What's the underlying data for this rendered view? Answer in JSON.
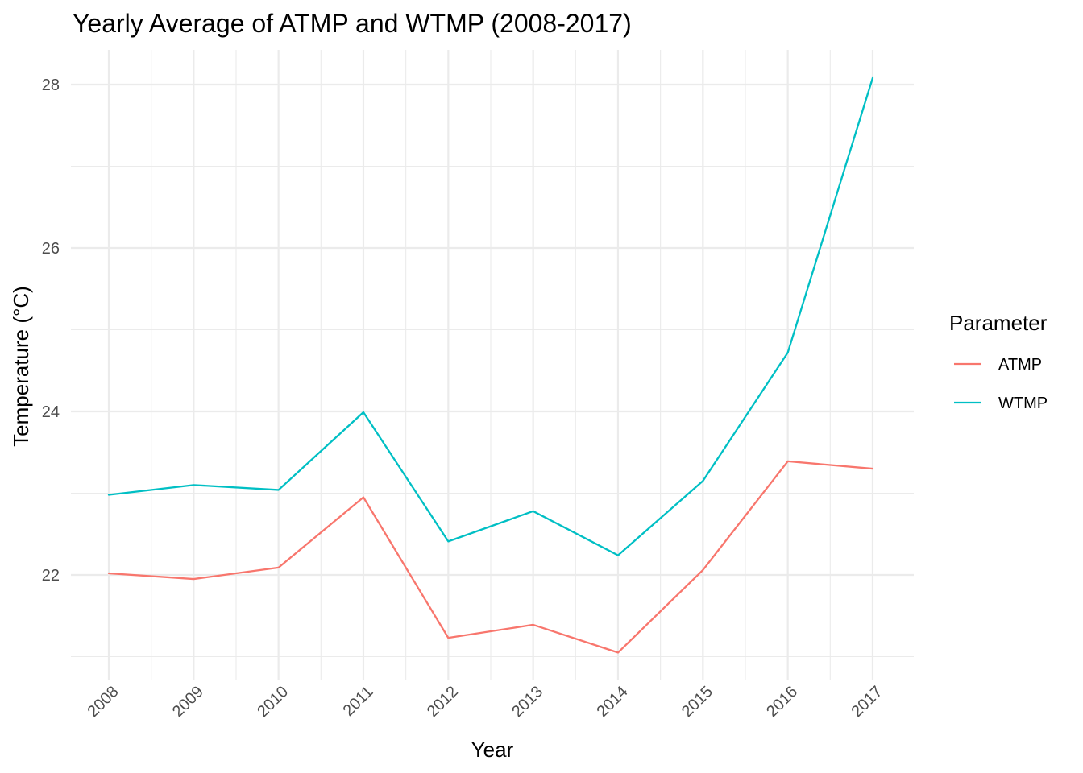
{
  "chart_data": {
    "type": "line",
    "title": "Yearly Average of ATMP and WTMP (2008-2017)",
    "xlabel": "Year",
    "ylabel": "Temperature (°C)",
    "x": [
      "2008",
      "2009",
      "2010",
      "2011",
      "2012",
      "2013",
      "2014",
      "2015",
      "2016",
      "2017"
    ],
    "y_ticks": [
      "22",
      "24",
      "26",
      "28"
    ],
    "ylim": [
      20.7,
      28.4
    ],
    "grid": true,
    "legend": {
      "title": "Parameter",
      "position": "right"
    },
    "series": [
      {
        "name": "ATMP",
        "color": "#F8766D",
        "values": [
          22.02,
          21.95,
          22.09,
          22.95,
          21.23,
          21.39,
          21.05,
          22.06,
          23.39,
          23.3
        ]
      },
      {
        "name": "WTMP",
        "color": "#00BFC4",
        "values": [
          22.98,
          23.1,
          23.04,
          23.99,
          22.41,
          22.78,
          22.24,
          23.15,
          24.72,
          28.08
        ]
      }
    ]
  }
}
